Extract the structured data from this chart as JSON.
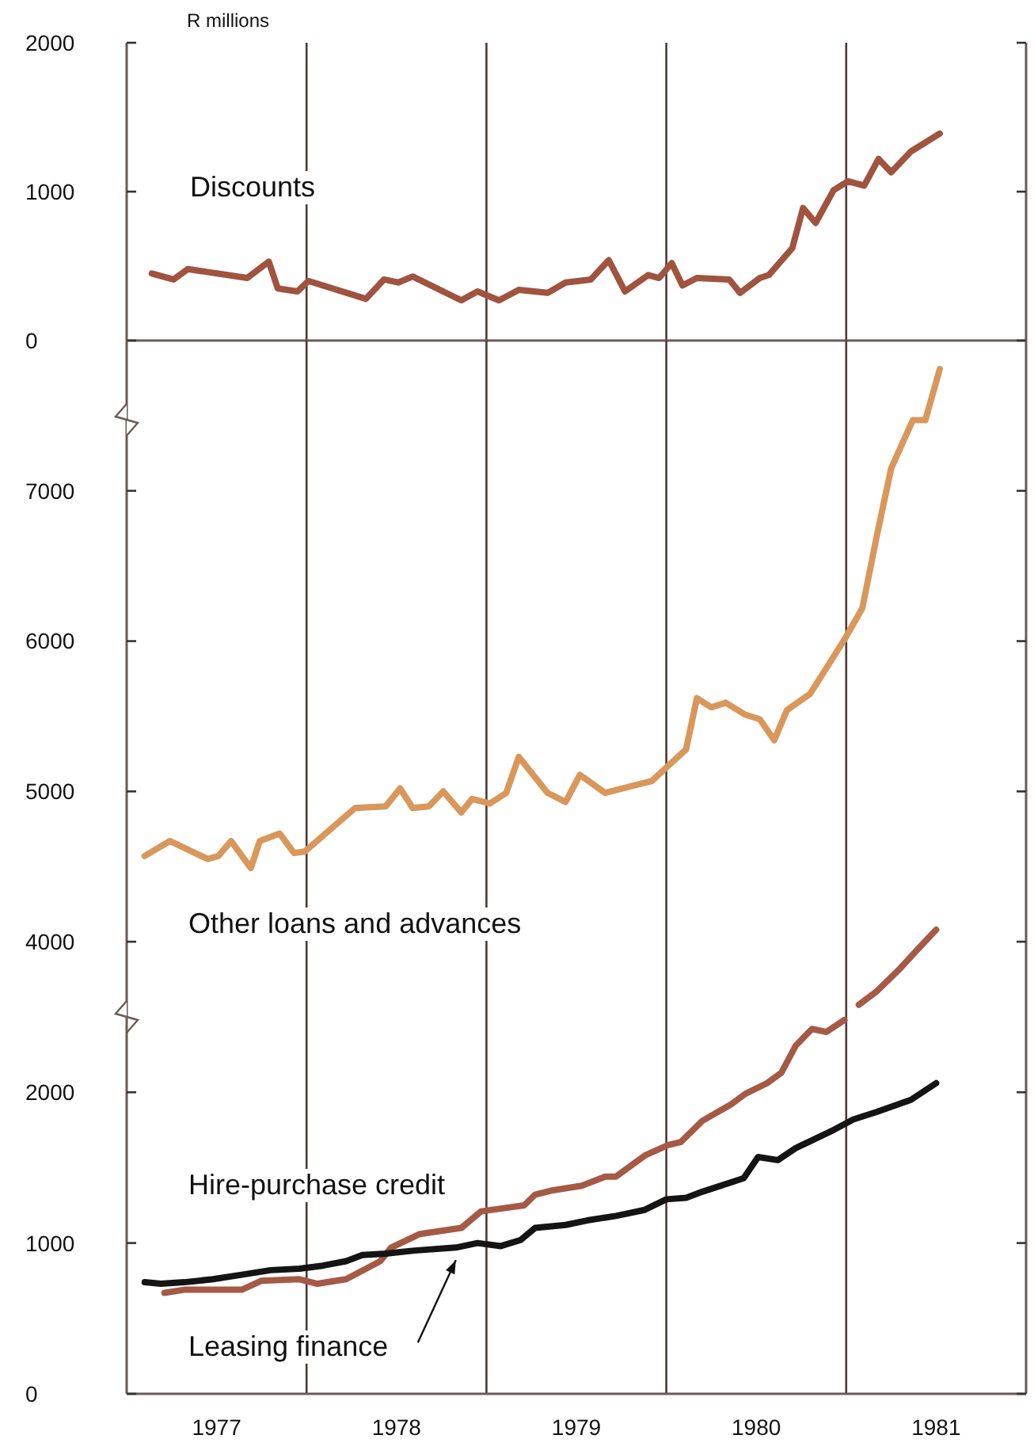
{
  "chart_data": [
    {
      "type": "line",
      "ylabel": "R millions",
      "xlim": [
        1977,
        1982
      ],
      "ylim": [
        0,
        2000
      ],
      "yticks": [
        0,
        1000,
        2000
      ],
      "tick_labels": "y",
      "marker": "none",
      "line_style": "solid",
      "ref_lines": [
        {
          "axis": "x",
          "value": 1978,
          "color": "#4a3a36"
        },
        {
          "axis": "x",
          "value": 1979,
          "color": "#4a3a36"
        },
        {
          "axis": "x",
          "value": 1980,
          "color": "#4a3a36"
        },
        {
          "axis": "x",
          "value": 1981,
          "color": "#4a3a36"
        }
      ],
      "series": [
        {
          "name": "Discounts",
          "color": "#a0533f",
          "x": [
            1977.14,
            1977.26,
            1977.34,
            1977.67,
            1977.79,
            1977.84,
            1977.95,
            1978.01,
            1978.33,
            1978.43,
            1978.51,
            1978.59,
            1978.86,
            1978.95,
            1979.07,
            1979.18,
            1979.34,
            1979.44,
            1979.58,
            1979.68,
            1979.77,
            1979.9,
            1979.96,
            1980.03,
            1980.09,
            1980.17,
            1980.35,
            1980.41,
            1980.52,
            1980.57,
            1980.7,
            1980.76,
            1980.83,
            1980.93,
            1981.01,
            1981.1,
            1981.18,
            1981.25,
            1981.36,
            1981.52
          ],
          "values": [
            450,
            410,
            480,
            420,
            530,
            350,
            330,
            400,
            280,
            410,
            390,
            430,
            270,
            330,
            270,
            340,
            320,
            390,
            410,
            540,
            330,
            440,
            420,
            520,
            370,
            420,
            410,
            320,
            420,
            440,
            620,
            890,
            790,
            1010,
            1070,
            1040,
            1220,
            1130,
            1270,
            1390
          ]
        }
      ]
    },
    {
      "type": "line",
      "xlim": [
        1977,
        1982
      ],
      "ylim": [
        3500,
        8000
      ],
      "yticks": [
        4000,
        5000,
        6000,
        7000
      ],
      "tick_labels": "y",
      "marker": "none",
      "line_style": "solid",
      "ref_lines": [
        {
          "axis": "x",
          "value": 1978,
          "color": "#4a3a36"
        },
        {
          "axis": "x",
          "value": 1979,
          "color": "#4a3a36"
        },
        {
          "axis": "x",
          "value": 1980,
          "color": "#4a3a36"
        },
        {
          "axis": "x",
          "value": 1981,
          "color": "#4a3a36"
        }
      ],
      "series": [
        {
          "name": "Other loans and advances",
          "color": "#d9975b",
          "x": [
            1977.1,
            1977.24,
            1977.45,
            1977.51,
            1977.58,
            1977.69,
            1977.74,
            1977.85,
            1977.93,
            1977.99,
            1978.27,
            1978.44,
            1978.52,
            1978.59,
            1978.68,
            1978.76,
            1978.86,
            1978.92,
            1979.02,
            1979.11,
            1979.18,
            1979.34,
            1979.44,
            1979.52,
            1979.66,
            1979.92,
            1980.01,
            1980.11,
            1980.17,
            1980.25,
            1980.33,
            1980.44,
            1980.52,
            1980.6,
            1980.67,
            1980.8,
            1980.99,
            1981.09,
            1981.17,
            1981.25,
            1981.37,
            1981.44,
            1981.52
          ],
          "values": [
            4570,
            4670,
            4550,
            4570,
            4670,
            4490,
            4670,
            4720,
            4590,
            4600,
            4890,
            4900,
            5020,
            4890,
            4900,
            5000,
            4860,
            4950,
            4920,
            4990,
            5230,
            4990,
            4930,
            5110,
            4990,
            5070,
            5170,
            5280,
            5620,
            5560,
            5590,
            5510,
            5480,
            5340,
            5540,
            5650,
            6010,
            6220,
            6700,
            7150,
            7470,
            7470,
            7810
          ]
        },
        {
          "color": "#a55a45",
          "x": [
            1981.07,
            1981.17,
            1981.29,
            1981.39,
            1981.5
          ],
          "values": [
            3580,
            3670,
            3810,
            3940,
            4080
          ]
        }
      ]
    },
    {
      "type": "line",
      "xlim": [
        1977,
        1982
      ],
      "xticks": [
        {
          "value": 1977.5,
          "label": "1977"
        },
        {
          "value": 1978.5,
          "label": "1978"
        },
        {
          "value": 1979.5,
          "label": "1979"
        },
        {
          "value": 1980.5,
          "label": "1980"
        },
        {
          "value": 1981.5,
          "label": "1981"
        }
      ],
      "ylim": [
        0,
        2500
      ],
      "yticks": [
        0,
        1000,
        2000
      ],
      "marker": "none",
      "line_style": "solid",
      "ref_lines": [
        {
          "axis": "x",
          "value": 1978,
          "color": "#4a3a36"
        },
        {
          "axis": "x",
          "value": 1979,
          "color": "#4a3a36"
        },
        {
          "axis": "x",
          "value": 1980,
          "color": "#4a3a36"
        },
        {
          "axis": "x",
          "value": 1981,
          "color": "#4a3a36"
        }
      ],
      "series": [
        {
          "name": "Hire-purchase credit",
          "color": "#a55a45",
          "x": [
            1977.21,
            1977.32,
            1977.45,
            1977.64,
            1977.75,
            1977.96,
            1978.06,
            1978.22,
            1978.41,
            1978.47,
            1978.63,
            1978.86,
            1978.97,
            1979.21,
            1979.27,
            1979.37,
            1979.53,
            1979.66,
            1979.72,
            1979.88,
            1980.01,
            1980.08,
            1980.2,
            1980.36,
            1980.44,
            1980.56,
            1980.64,
            1980.72,
            1980.81,
            1980.89,
            1980.99
          ],
          "values": [
            670,
            690,
            690,
            690,
            750,
            760,
            730,
            760,
            880,
            970,
            1060,
            1100,
            1210,
            1250,
            1320,
            1350,
            1380,
            1440,
            1440,
            1580,
            1650,
            1670,
            1810,
            1920,
            1990,
            2060,
            2130,
            2310,
            2420,
            2400,
            2480
          ]
        },
        {
          "name": "Leasing finance",
          "color": "#141414",
          "x": [
            1977.1,
            1977.19,
            1977.32,
            1977.48,
            1977.64,
            1977.8,
            1977.96,
            1978.09,
            1978.22,
            1978.31,
            1978.44,
            1978.6,
            1978.83,
            1978.95,
            1979.08,
            1979.19,
            1979.27,
            1979.44,
            1979.56,
            1979.72,
            1979.88,
            1980,
            1980.11,
            1980.2,
            1980.43,
            1980.51,
            1980.62,
            1980.72,
            1980.93,
            1981.04,
            1981.17,
            1981.36,
            1981.5
          ],
          "values": [
            740,
            730,
            740,
            760,
            790,
            820,
            830,
            850,
            880,
            920,
            930,
            950,
            970,
            1000,
            980,
            1020,
            1100,
            1120,
            1150,
            1180,
            1220,
            1290,
            1300,
            1340,
            1430,
            1570,
            1550,
            1630,
            1750,
            1820,
            1870,
            1950,
            2060
          ]
        }
      ]
    }
  ]
}
